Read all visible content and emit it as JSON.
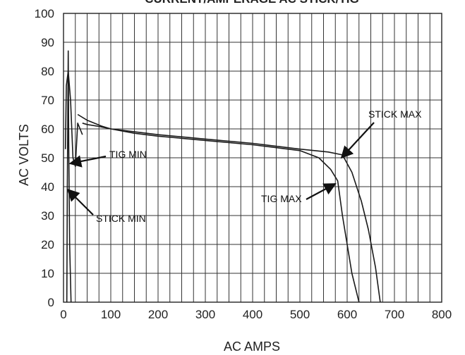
{
  "chart_data": {
    "type": "line",
    "title": "CURRENT/AMPERAGE AC STICK/TIG",
    "xlabel": "AC AMPS",
    "ylabel": "AC VOLTS",
    "xlim": [
      0,
      800
    ],
    "ylim": [
      0,
      100
    ],
    "xticks": [
      "0",
      "100",
      "200",
      "300",
      "400",
      "500",
      "600",
      "700",
      "800"
    ],
    "yticks": [
      "0",
      "10",
      "20",
      "30",
      "40",
      "50",
      "60",
      "70",
      "80",
      "90",
      "100"
    ],
    "grid": true,
    "series": [
      {
        "name": "STICK MAX",
        "x": [
          40,
          50,
          70,
          100,
          150,
          200,
          300,
          400,
          500,
          560,
          590,
          610,
          630,
          645,
          660,
          670
        ],
        "y": [
          62,
          61.5,
          61,
          60,
          59,
          58,
          56.5,
          55,
          53,
          52,
          51,
          45,
          35,
          25,
          12,
          0
        ]
      },
      {
        "name": "TIG MAX",
        "x": [
          30,
          50,
          80,
          100,
          150,
          200,
          300,
          400,
          500,
          540,
          565,
          580,
          590,
          600,
          610,
          625
        ],
        "y": [
          65,
          63,
          61,
          60,
          58.5,
          57.5,
          56,
          54.5,
          52.5,
          50,
          46,
          42,
          30,
          20,
          10,
          0
        ]
      },
      {
        "name": "STICK MIN",
        "x": [
          7,
          8,
          9,
          10,
          11,
          13,
          16
        ],
        "y": [
          0,
          40,
          60,
          87,
          55,
          20,
          0
        ]
      },
      {
        "name": "TIG MIN",
        "x": [
          4,
          6,
          10,
          15,
          20,
          25,
          30,
          35,
          40
        ],
        "y": [
          53,
          75,
          80,
          70,
          50,
          47,
          62,
          60,
          58
        ]
      }
    ],
    "annotations": [
      {
        "text": "TIG MIN",
        "x": 14,
        "y": 48
      },
      {
        "text": "STICK MIN",
        "x": 9,
        "y": 39
      },
      {
        "text": "TIG MAX",
        "x": 575,
        "y": 41
      },
      {
        "text": "STICK MAX",
        "x": 588,
        "y": 50
      }
    ]
  }
}
